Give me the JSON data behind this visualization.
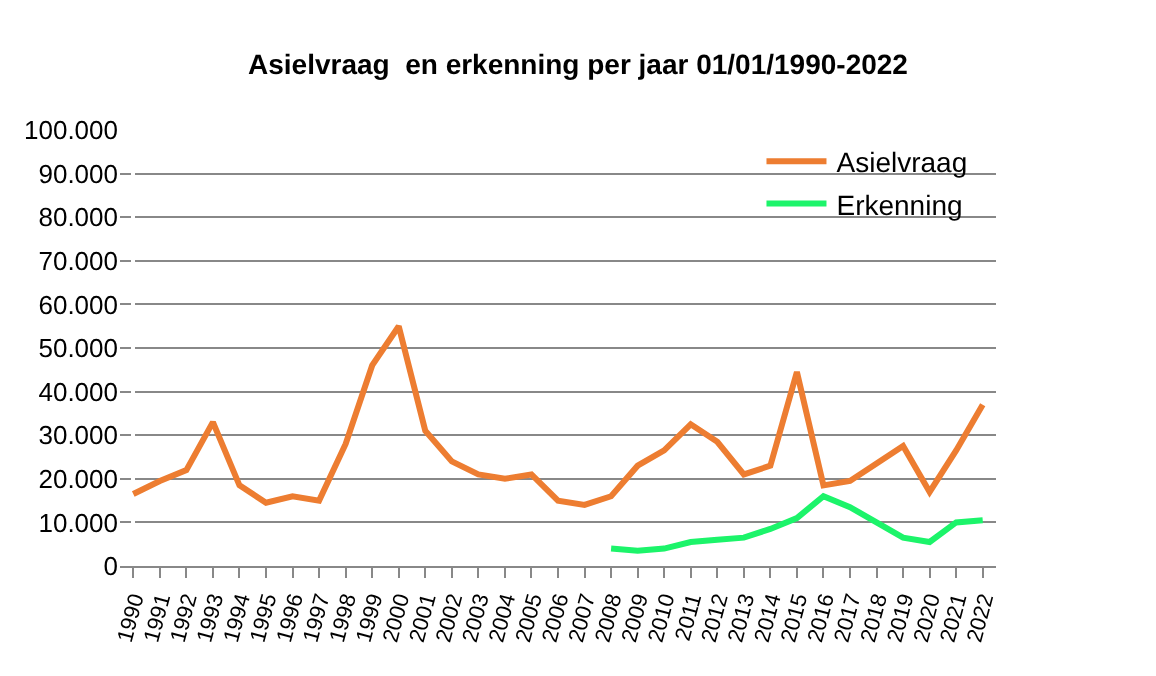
{
  "chart_data": {
    "type": "line",
    "title": "Asielvraag  en erkenning per jaar 01/01/1990-2022",
    "categories": [
      "1990",
      "1991",
      "1992",
      "1993",
      "1994",
      "1995",
      "1996",
      "1997",
      "1998",
      "1999",
      "2000",
      "2001",
      "2002",
      "2003",
      "2004",
      "2005",
      "2006",
      "2007",
      "2008",
      "2009",
      "2010",
      "2011",
      "2012",
      "2013",
      "2014",
      "2015",
      "2016",
      "2017",
      "2018",
      "2019",
      "2020",
      "2021",
      "2022"
    ],
    "series": [
      {
        "name": "Asielvraag",
        "color": "#ed7d31",
        "values": [
          16500,
          19500,
          22000,
          33000,
          18500,
          14500,
          16000,
          15000,
          28000,
          46000,
          55000,
          31000,
          24000,
          21000,
          20000,
          21000,
          15000,
          14000,
          16000,
          23000,
          26500,
          32500,
          28500,
          21000,
          23000,
          44500,
          18500,
          19500,
          23500,
          27500,
          17000,
          26500,
          37000
        ]
      },
      {
        "name": "Erkenning",
        "color": "#1cf46a",
        "values": [
          null,
          null,
          null,
          null,
          null,
          null,
          null,
          null,
          null,
          null,
          null,
          null,
          null,
          null,
          null,
          null,
          null,
          null,
          4000,
          3500,
          4000,
          5500,
          6000,
          6500,
          8500,
          11000,
          16000,
          13500,
          10000,
          6500,
          5500,
          10000,
          10500
        ]
      }
    ],
    "ylim": [
      0,
      100000
    ],
    "yticks": [
      {
        "value": 0,
        "label": "0"
      },
      {
        "value": 10000,
        "label": "10.000"
      },
      {
        "value": 20000,
        "label": "20.000"
      },
      {
        "value": 30000,
        "label": "30.000"
      },
      {
        "value": 40000,
        "label": "40.000"
      },
      {
        "value": 50000,
        "label": "50.000"
      },
      {
        "value": 60000,
        "label": "60.000"
      },
      {
        "value": 70000,
        "label": "70.000"
      },
      {
        "value": 80000,
        "label": "80.000"
      },
      {
        "value": 90000,
        "label": "90.000"
      },
      {
        "value": 100000,
        "label": "100.000"
      }
    ],
    "grid": "y",
    "legend": "top right",
    "marker": "none",
    "line_style": "solid"
  }
}
